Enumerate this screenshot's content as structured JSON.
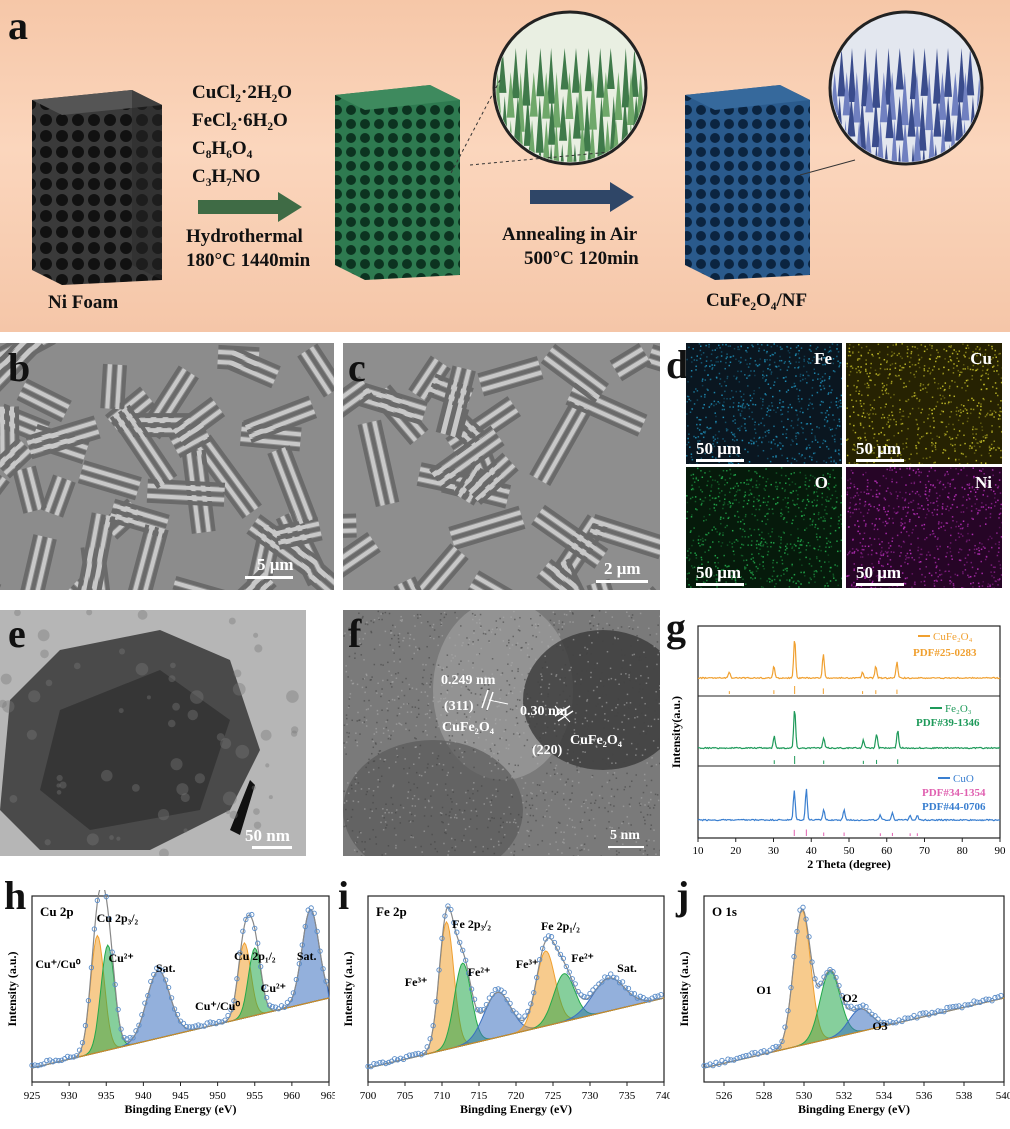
{
  "panel_a": {
    "letter": "a",
    "ni_foam_label": "Ni Foam",
    "reagents": [
      "CuCl₂·2H₂O",
      "FeCl₂·6H₂O",
      "C₈H₆O₄",
      "C₃H₇NO"
    ],
    "step1_line1": "Hydrothermal",
    "step1_line2": "180°C 1440min",
    "step2_line1": "Annealing  in Air",
    "step2_line2": "500°C 120min",
    "product_label": "CuFe₂O₄/NF",
    "colors": {
      "green_arrow": "#3f6b45",
      "blue_arrow": "#2f4667",
      "green_foam": "#1f5a3c",
      "blue_foam": "#18426a"
    }
  },
  "panel_b": {
    "letter": "b",
    "scale_label": "5 μm"
  },
  "panel_c": {
    "letter": "c",
    "scale_label": "2 μm"
  },
  "panel_d": {
    "letter": "d",
    "maps": [
      {
        "element": "Fe",
        "scale_label": "50 μm",
        "color": "#1f8fb8"
      },
      {
        "element": "Cu",
        "scale_label": "50 μm",
        "color": "#c8c22a"
      },
      {
        "element": "O",
        "scale_label": "50 μm",
        "color": "#22a84a"
      },
      {
        "element": "Ni",
        "scale_label": "50 μm",
        "color": "#b62fb8"
      }
    ]
  },
  "panel_e": {
    "letter": "e",
    "scale_label": "50 nm"
  },
  "panel_f": {
    "letter": "f",
    "scale_label": "5 nm",
    "d1": "0.249 nm",
    "plane1": "(311)",
    "phase1": "CuFe₂O₄",
    "d2": "0.30 nm",
    "plane2": "(220)",
    "phase2": "CuFe₂O₄"
  },
  "panel_g": {
    "letter": "g",
    "legend": [
      {
        "line": "CuFe₂O₄",
        "pdf": "PDF#25-0283",
        "color": "#f0a030"
      },
      {
        "line": "Fe₂O₃",
        "pdf": "PDF#39-1346",
        "color": "#1e9a5a"
      },
      {
        "line": "CuO",
        "pdf1": "PDF#34-1354",
        "pdf2": "PDF#44-0706",
        "color": "#3a7fd0",
        "pdf1_color": "#e060b0",
        "pdf2_color": "#3a7fd0"
      }
    ]
  },
  "panel_h": {
    "letter": "h",
    "title": "Cu 2p",
    "ylabel": "Intensity (a.u.)",
    "xlabel": "Bingding Energy (eV)",
    "labels": {
      "cu2p32": "Cu 2p₃/₂",
      "cu2p12": "Cu 2p₁/₂",
      "cu1": "Cu⁺/Cu⁰",
      "cu2": "Cu²⁺",
      "sat1": "Sat.",
      "cu1b": "Cu⁺/Cu⁰",
      "cu2b": "Cu²⁺",
      "sat2": "Sat."
    }
  },
  "panel_i": {
    "letter": "i",
    "title": "Fe 2p",
    "ylabel": "Intensity (a.u.)",
    "xlabel": "Bingding Energy (eV)",
    "labels": {
      "fe2p32": "Fe 2p₃/₂",
      "fe2p12": "Fe 2p₁/₂",
      "fe3a": "Fe³⁺",
      "fe2a": "Fe²⁺",
      "fe3b": "Fe³⁺",
      "fe2b": "Fe²⁺",
      "sat": "Sat."
    }
  },
  "panel_j": {
    "letter": "j",
    "title": "O 1s",
    "ylabel": "Intensity (a.u.)",
    "xlabel": "Bingding Energy (eV)",
    "labels": {
      "o1": "O1",
      "o2": "O2",
      "o3": "O3"
    }
  },
  "chart_data": [
    {
      "type": "line",
      "panel": "g",
      "title": "",
      "xlabel": "2 Theta (degree)",
      "ylabel": "Intensity(a.u.)",
      "xlim": [
        10,
        90
      ],
      "xticks": [
        10,
        20,
        30,
        40,
        50,
        60,
        70,
        80,
        90
      ],
      "series": [
        {
          "name": "CuFe₂O₄",
          "peaks_x": [
            18.3,
            30.1,
            35.6,
            43.2,
            53.6,
            57.1,
            62.7
          ],
          "peaks_h": [
            0.15,
            0.3,
            1.0,
            0.6,
            0.15,
            0.3,
            0.4
          ]
        },
        {
          "name": "Fe₂O₃",
          "peaks_x": [
            30.2,
            35.6,
            43.3,
            53.8,
            57.3,
            62.9
          ],
          "peaks_h": [
            0.3,
            1.0,
            0.25,
            0.2,
            0.35,
            0.45
          ]
        },
        {
          "name": "CuO",
          "peaks_x": [
            35.5,
            38.7,
            43.3,
            48.7,
            58.3,
            61.5,
            66.2,
            68.1
          ],
          "peaks_h": [
            0.7,
            0.75,
            0.25,
            0.25,
            0.12,
            0.18,
            0.12,
            0.12
          ]
        }
      ]
    },
    {
      "type": "line",
      "panel": "h",
      "xlabel": "Bingding Energy (eV)",
      "ylabel": "Intensity (a.u.)",
      "xlim": [
        925,
        965
      ],
      "xticks": [
        925,
        930,
        935,
        940,
        945,
        950,
        955,
        960,
        965
      ],
      "peaks": [
        {
          "name": "Cu⁺/Cu⁰",
          "center": 933.8,
          "height": 0.78,
          "width": 1.3,
          "color": "#f0a030"
        },
        {
          "name": "Cu²⁺",
          "center": 935.2,
          "height": 0.7,
          "width": 1.3,
          "color": "#22a84a"
        },
        {
          "name": "Sat.",
          "center": 942,
          "height": 0.45,
          "width": 2.2,
          "color": "#3a6fc0"
        },
        {
          "name": "Cu⁺/Cu⁰",
          "center": 953.6,
          "height": 0.5,
          "width": 1.2,
          "color": "#f0a030"
        },
        {
          "name": "Cu²⁺",
          "center": 955,
          "height": 0.45,
          "width": 1.2,
          "color": "#22a84a"
        },
        {
          "name": "Sat.",
          "center": 962.5,
          "height": 0.62,
          "width": 1.6,
          "color": "#3a6fc0"
        }
      ]
    },
    {
      "type": "line",
      "panel": "i",
      "xlabel": "Bingding Energy (eV)",
      "ylabel": "Intensity (a.u.)",
      "xlim": [
        700,
        740
      ],
      "xticks": [
        700,
        705,
        710,
        715,
        720,
        725,
        730,
        735,
        740
      ],
      "peaks": [
        {
          "name": "Fe³⁺",
          "center": 710.6,
          "height": 0.85,
          "width": 1.4,
          "color": "#f0a030"
        },
        {
          "name": "Fe²⁺",
          "center": 712.8,
          "height": 0.55,
          "width": 1.6,
          "color": "#22a84a"
        },
        {
          "name": "Sat.",
          "center": 717.5,
          "height": 0.3,
          "width": 2.5,
          "color": "#3a6fc0"
        },
        {
          "name": "Fe³⁺",
          "center": 724,
          "height": 0.5,
          "width": 1.8,
          "color": "#f0a030"
        },
        {
          "name": "Fe²⁺",
          "center": 726.5,
          "height": 0.32,
          "width": 2.0,
          "color": "#22a84a"
        },
        {
          "name": "Sat.",
          "center": 732.5,
          "height": 0.22,
          "width": 3.0,
          "color": "#3a6fc0"
        }
      ]
    },
    {
      "type": "line",
      "panel": "j",
      "xlabel": "Bingding Energy (eV)",
      "ylabel": "Intensity (a.u.)",
      "xlim": [
        525,
        540
      ],
      "xticks": [
        526,
        528,
        530,
        532,
        534,
        536,
        538,
        540
      ],
      "peaks": [
        {
          "name": "O1",
          "center": 529.9,
          "height": 0.9,
          "width": 0.6,
          "color": "#f0a030"
        },
        {
          "name": "O2",
          "center": 531.3,
          "height": 0.45,
          "width": 0.7,
          "color": "#22a84a"
        },
        {
          "name": "O3",
          "center": 532.8,
          "height": 0.15,
          "width": 0.8,
          "color": "#3a6fc0"
        }
      ]
    }
  ]
}
